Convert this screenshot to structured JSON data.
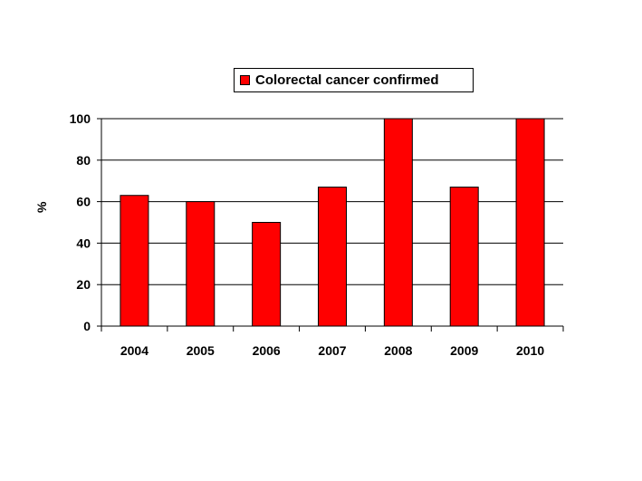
{
  "chart_data": {
    "type": "bar",
    "categories": [
      "2004",
      "2005",
      "2006",
      "2007",
      "2008",
      "2009",
      "2010"
    ],
    "series": [
      {
        "name": "Colorectal cancer confirmed",
        "values": [
          63,
          60,
          50,
          67,
          100,
          67,
          100
        ],
        "color": "#ff0000"
      }
    ],
    "title": "",
    "xlabel": "",
    "ylabel": "%",
    "ylim": [
      0,
      100
    ],
    "yticks": [
      0,
      20,
      40,
      60,
      80,
      100
    ],
    "grid": true,
    "legend_position": "top"
  }
}
